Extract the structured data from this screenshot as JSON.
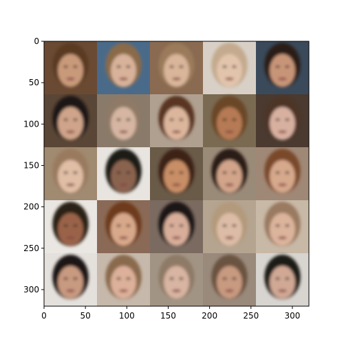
{
  "image": {
    "description_type": "image-grid",
    "rows": 5,
    "cols": 5,
    "pixel_extent": [
      0,
      320,
      0,
      320
    ],
    "x_ticks": [
      "0",
      "50",
      "100",
      "150",
      "200",
      "250",
      "300"
    ],
    "y_ticks": [
      "0",
      "50",
      "100",
      "150",
      "200",
      "250",
      "300"
    ],
    "tiles": [
      {
        "bg": "#6b4a33",
        "hair": "#5a3a24",
        "skin": "#c99a7a"
      },
      {
        "bg": "#4a6a8a",
        "hair": "#8a6a4a",
        "skin": "#d8b29a"
      },
      {
        "bg": "#8a6a50",
        "hair": "#9a7a5a",
        "skin": "#d9b59a"
      },
      {
        "bg": "#d8d0c6",
        "hair": "#c4aa8e",
        "skin": "#e2c4ac"
      },
      {
        "bg": "#3a4a5a",
        "hair": "#2b1e18",
        "skin": "#c89478"
      },
      {
        "bg": "#5a4636",
        "hair": "#1e1612",
        "skin": "#cfa48a"
      },
      {
        "bg": "#8a7a6a",
        "hair": "#8e7a66",
        "skin": "#d6b6a2"
      },
      {
        "bg": "#b0a090",
        "hair": "#5a3420",
        "skin": "#dcb69c"
      },
      {
        "bg": "#7a6a52",
        "hair": "#6a4628",
        "skin": "#b67a54"
      },
      {
        "bg": "#4a3a30",
        "hair": "#4e3426",
        "skin": "#d8b0a0"
      },
      {
        "bg": "#a08a70",
        "hair": "#9a7a5e",
        "skin": "#e0bea6"
      },
      {
        "bg": "#e8e4e0",
        "hair": "#1e1a18",
        "skin": "#8a6450"
      },
      {
        "bg": "#6a5a48",
        "hair": "#3e2416",
        "skin": "#c88e66"
      },
      {
        "bg": "#9a8a78",
        "hair": "#2a1a12",
        "skin": "#d2a48a"
      },
      {
        "bg": "#a08876",
        "hair": "#7a4a2a",
        "skin": "#d6a88c"
      },
      {
        "bg": "#eae6e2",
        "hair": "#2a2018",
        "skin": "#9a6448"
      },
      {
        "bg": "#8a6a56",
        "hair": "#6e3a1a",
        "skin": "#d8a88a"
      },
      {
        "bg": "#7a6a60",
        "hair": "#1e1812",
        "skin": "#d8ae9a"
      },
      {
        "bg": "#b4a490",
        "hair": "#b49a7c",
        "skin": "#dcbca6"
      },
      {
        "bg": "#c8b8a6",
        "hair": "#9a7a60",
        "skin": "#dcb49c"
      },
      {
        "bg": "#e4e0dc",
        "hair": "#1e1612",
        "skin": "#c89a80"
      },
      {
        "bg": "#c6b8aa",
        "hair": "#8a6a4e",
        "skin": "#dcb09a"
      },
      {
        "bg": "#a29484",
        "hair": "#8e7a66",
        "skin": "#d8b4a2"
      },
      {
        "bg": "#9a8a7c",
        "hair": "#6a5240",
        "skin": "#c89a80"
      },
      {
        "bg": "#d8d4d0",
        "hair": "#1e1a18",
        "skin": "#d0a894"
      }
    ]
  }
}
